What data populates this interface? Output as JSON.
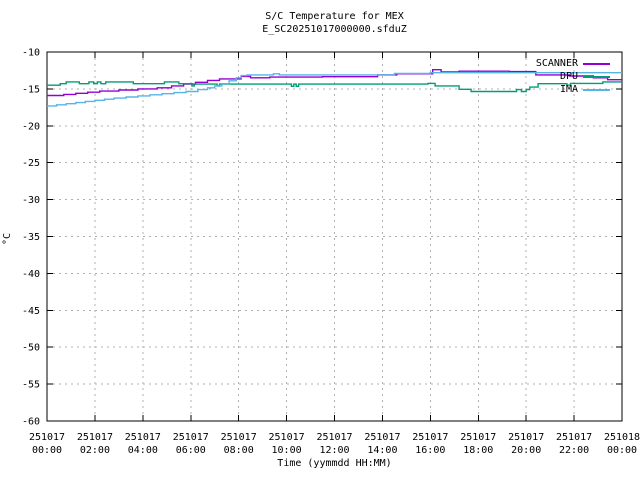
{
  "chart_data": {
    "type": "line",
    "title": "S/C Temperature for MEX",
    "subtitle": "E_SC20251017000000.sfduZ",
    "xlabel": "Time (yymmdd HH:MM)",
    "ylabel": "°C",
    "ylim": [
      -60,
      -10
    ],
    "xlim_hours": [
      0,
      24
    ],
    "grid": "dashed",
    "legend_position": "top-right-inside",
    "background_color": "#ffffff",
    "border_color": "#000000",
    "grid_color": "#b0b0b0",
    "text_color": "#000000",
    "y_ticks": [
      -10,
      -15,
      -20,
      -25,
      -30,
      -35,
      -40,
      -45,
      -50,
      -55,
      -60
    ],
    "x_ticks": [
      {
        "hour": 0,
        "date": "251017",
        "time": "00:00"
      },
      {
        "hour": 2,
        "date": "251017",
        "time": "02:00"
      },
      {
        "hour": 4,
        "date": "251017",
        "time": "04:00"
      },
      {
        "hour": 6,
        "date": "251017",
        "time": "06:00"
      },
      {
        "hour": 8,
        "date": "251017",
        "time": "08:00"
      },
      {
        "hour": 10,
        "date": "251017",
        "time": "10:00"
      },
      {
        "hour": 12,
        "date": "251017",
        "time": "12:00"
      },
      {
        "hour": 14,
        "date": "251017",
        "time": "14:00"
      },
      {
        "hour": 16,
        "date": "251017",
        "time": "16:00"
      },
      {
        "hour": 18,
        "date": "251017",
        "time": "18:00"
      },
      {
        "hour": 20,
        "date": "251017",
        "time": "20:00"
      },
      {
        "hour": 22,
        "date": "251017",
        "time": "22:00"
      },
      {
        "hour": 24,
        "date": "251018",
        "time": "00:00"
      }
    ],
    "series": [
      {
        "name": "SCANNER",
        "color": "#9400d3",
        "points": [
          [
            0,
            -15.9
          ],
          [
            0.7,
            -15.9
          ],
          [
            0.7,
            -15.75
          ],
          [
            1.2,
            -15.75
          ],
          [
            1.2,
            -15.6
          ],
          [
            1.7,
            -15.6
          ],
          [
            1.7,
            -15.45
          ],
          [
            2.2,
            -15.45
          ],
          [
            2.2,
            -15.3
          ],
          [
            3.0,
            -15.3
          ],
          [
            3.0,
            -15.15
          ],
          [
            3.8,
            -15.15
          ],
          [
            3.8,
            -15.0
          ],
          [
            4.6,
            -15.0
          ],
          [
            4.6,
            -14.85
          ],
          [
            5.2,
            -14.85
          ],
          [
            5.2,
            -14.6
          ],
          [
            5.7,
            -14.6
          ],
          [
            5.7,
            -14.35
          ],
          [
            6.2,
            -14.35
          ],
          [
            6.2,
            -14.1
          ],
          [
            6.7,
            -14.1
          ],
          [
            6.7,
            -13.85
          ],
          [
            7.2,
            -13.85
          ],
          [
            7.2,
            -13.65
          ],
          [
            8.1,
            -13.65
          ],
          [
            8.1,
            -13.3
          ],
          [
            8.5,
            -13.3
          ],
          [
            8.5,
            -13.5
          ],
          [
            9.3,
            -13.5
          ],
          [
            9.3,
            -13.4
          ],
          [
            11.5,
            -13.4
          ],
          [
            11.5,
            -13.35
          ],
          [
            13.8,
            -13.35
          ],
          [
            13.8,
            -13.1
          ],
          [
            14.6,
            -13.1
          ],
          [
            14.6,
            -12.95
          ],
          [
            16.1,
            -12.95
          ],
          [
            16.1,
            -12.4
          ],
          [
            16.45,
            -12.4
          ],
          [
            16.45,
            -12.7
          ],
          [
            17.2,
            -12.7
          ],
          [
            17.2,
            -12.6
          ],
          [
            19.3,
            -12.6
          ],
          [
            19.3,
            -12.65
          ],
          [
            20.4,
            -12.65
          ],
          [
            20.4,
            -13.1
          ],
          [
            21.8,
            -13.1
          ],
          [
            21.8,
            -13.25
          ],
          [
            22.8,
            -13.25
          ],
          [
            22.8,
            -13.5
          ],
          [
            23.4,
            -13.5
          ],
          [
            23.4,
            -13.75
          ],
          [
            24,
            -13.75
          ]
        ]
      },
      {
        "name": "DPU",
        "color": "#009e73",
        "points": [
          [
            0,
            -14.5
          ],
          [
            0.55,
            -14.5
          ],
          [
            0.55,
            -14.3
          ],
          [
            0.8,
            -14.3
          ],
          [
            0.8,
            -14.05
          ],
          [
            1.35,
            -14.05
          ],
          [
            1.35,
            -14.3
          ],
          [
            1.75,
            -14.3
          ],
          [
            1.75,
            -14.05
          ],
          [
            1.95,
            -14.05
          ],
          [
            1.95,
            -14.3
          ],
          [
            2.1,
            -14.3
          ],
          [
            2.1,
            -14.05
          ],
          [
            2.25,
            -14.05
          ],
          [
            2.25,
            -14.3
          ],
          [
            2.45,
            -14.3
          ],
          [
            2.45,
            -14.05
          ],
          [
            3.6,
            -14.05
          ],
          [
            3.6,
            -14.3
          ],
          [
            4.9,
            -14.3
          ],
          [
            4.9,
            -14.05
          ],
          [
            5.5,
            -14.05
          ],
          [
            5.5,
            -14.3
          ],
          [
            6.05,
            -14.3
          ],
          [
            6.05,
            -14.6
          ],
          [
            6.15,
            -14.6
          ],
          [
            6.15,
            -14.35
          ],
          [
            7.1,
            -14.35
          ],
          [
            7.1,
            -14.6
          ],
          [
            7.2,
            -14.6
          ],
          [
            7.2,
            -14.35
          ],
          [
            10.2,
            -14.35
          ],
          [
            10.2,
            -14.65
          ],
          [
            10.3,
            -14.65
          ],
          [
            10.3,
            -14.35
          ],
          [
            10.4,
            -14.35
          ],
          [
            10.4,
            -14.65
          ],
          [
            10.5,
            -14.65
          ],
          [
            10.5,
            -14.35
          ],
          [
            15.9,
            -14.35
          ],
          [
            15.9,
            -14.25
          ],
          [
            16.2,
            -14.25
          ],
          [
            16.2,
            -14.6
          ],
          [
            17.2,
            -14.6
          ],
          [
            17.2,
            -15.05
          ],
          [
            17.7,
            -15.05
          ],
          [
            17.7,
            -15.35
          ],
          [
            19.6,
            -15.35
          ],
          [
            19.6,
            -15.1
          ],
          [
            19.8,
            -15.1
          ],
          [
            19.8,
            -15.35
          ],
          [
            20.0,
            -15.35
          ],
          [
            20.0,
            -15.1
          ],
          [
            20.15,
            -15.1
          ],
          [
            20.15,
            -14.75
          ],
          [
            20.5,
            -14.75
          ],
          [
            20.5,
            -14.3
          ],
          [
            21.7,
            -14.3
          ],
          [
            21.7,
            -14.5
          ],
          [
            21.85,
            -14.5
          ],
          [
            21.85,
            -14.25
          ],
          [
            23.2,
            -14.25
          ],
          [
            23.2,
            -14.05
          ],
          [
            24,
            -14.05
          ]
        ]
      },
      {
        "name": "IMA",
        "color": "#56b4e9",
        "points": [
          [
            0,
            -17.3
          ],
          [
            0.4,
            -17.3
          ],
          [
            0.4,
            -17.15
          ],
          [
            0.8,
            -17.15
          ],
          [
            0.8,
            -17.0
          ],
          [
            1.2,
            -17.0
          ],
          [
            1.2,
            -16.85
          ],
          [
            1.6,
            -16.85
          ],
          [
            1.6,
            -16.7
          ],
          [
            2.0,
            -16.7
          ],
          [
            2.0,
            -16.55
          ],
          [
            2.4,
            -16.55
          ],
          [
            2.4,
            -16.4
          ],
          [
            2.8,
            -16.4
          ],
          [
            2.8,
            -16.25
          ],
          [
            3.3,
            -16.25
          ],
          [
            3.3,
            -16.1
          ],
          [
            3.8,
            -16.1
          ],
          [
            3.8,
            -15.95
          ],
          [
            4.3,
            -15.95
          ],
          [
            4.3,
            -15.8
          ],
          [
            4.8,
            -15.8
          ],
          [
            4.8,
            -15.65
          ],
          [
            5.3,
            -15.65
          ],
          [
            5.3,
            -15.5
          ],
          [
            5.8,
            -15.5
          ],
          [
            5.8,
            -15.35
          ],
          [
            6.3,
            -15.35
          ],
          [
            6.3,
            -15.1
          ],
          [
            6.7,
            -15.1
          ],
          [
            6.7,
            -14.85
          ],
          [
            7.0,
            -14.85
          ],
          [
            7.0,
            -14.6
          ],
          [
            7.3,
            -14.6
          ],
          [
            7.3,
            -14.3
          ],
          [
            7.6,
            -14.3
          ],
          [
            7.6,
            -13.9
          ],
          [
            7.9,
            -13.9
          ],
          [
            7.9,
            -13.5
          ],
          [
            8.1,
            -13.5
          ],
          [
            8.1,
            -13.2
          ],
          [
            8.35,
            -13.2
          ],
          [
            8.35,
            -13.1
          ],
          [
            9.45,
            -13.1
          ],
          [
            9.45,
            -12.95
          ],
          [
            9.7,
            -12.95
          ],
          [
            9.7,
            -13.1
          ],
          [
            14.5,
            -13.1
          ],
          [
            14.5,
            -12.9
          ],
          [
            16.0,
            -12.9
          ],
          [
            16.0,
            -12.8
          ],
          [
            24,
            -12.8
          ]
        ]
      }
    ]
  }
}
